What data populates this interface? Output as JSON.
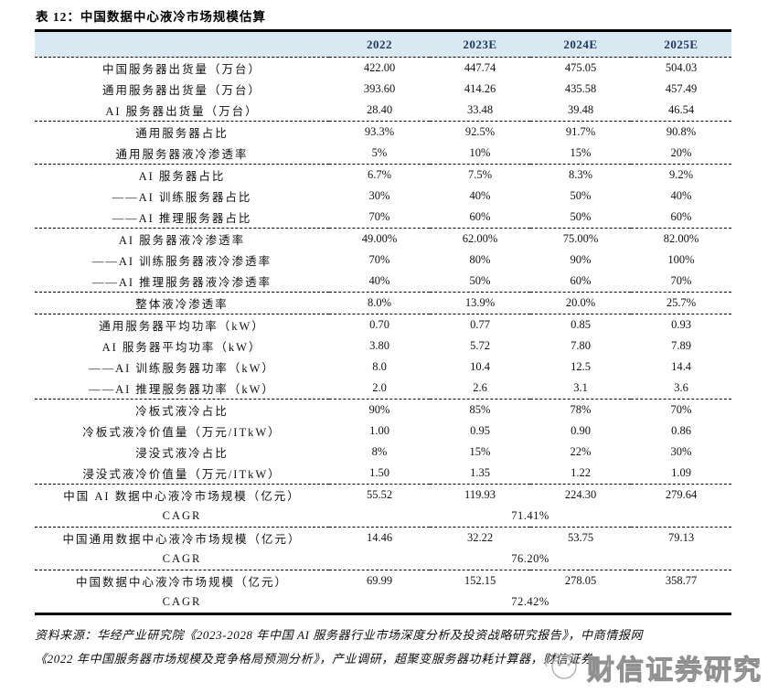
{
  "title": "表 12：中国数据中心液冷市场规模估算",
  "table": {
    "columns": [
      "2022",
      "2023E",
      "2024E",
      "2025E"
    ],
    "groups": [
      {
        "rows": [
          {
            "label": "中国服务器出货量（万台）",
            "values": [
              "422.00",
              "447.74",
              "475.05",
              "504.03"
            ]
          },
          {
            "label": "通用服务器出货量（万台）",
            "values": [
              "393.60",
              "414.26",
              "435.58",
              "457.49"
            ]
          },
          {
            "label": "AI 服务器出货量（万台）",
            "values": [
              "28.40",
              "33.48",
              "39.48",
              "46.54"
            ]
          }
        ]
      },
      {
        "rows": [
          {
            "label": "通用服务器占比",
            "values": [
              "93.3%",
              "92.5%",
              "91.7%",
              "90.8%"
            ]
          },
          {
            "label": "通用服务器液冷渗透率",
            "values": [
              "5%",
              "10%",
              "15%",
              "20%"
            ]
          }
        ]
      },
      {
        "rows": [
          {
            "label": "AI 服务器占比",
            "values": [
              "6.7%",
              "7.5%",
              "8.3%",
              "9.2%"
            ]
          },
          {
            "label": "——AI 训练服务器占比",
            "values": [
              "30%",
              "40%",
              "50%",
              "40%"
            ]
          },
          {
            "label": "——AI 推理服务器占比",
            "values": [
              "70%",
              "60%",
              "50%",
              "60%"
            ]
          }
        ]
      },
      {
        "rows": [
          {
            "label": "AI 服务器液冷渗透率",
            "values": [
              "49.00%",
              "62.00%",
              "75.00%",
              "82.00%"
            ]
          },
          {
            "label": "——AI 训练服务器液冷渗透率",
            "values": [
              "70%",
              "80%",
              "90%",
              "100%"
            ]
          },
          {
            "label": "——AI 推理服务器液冷渗透率",
            "values": [
              "40%",
              "50%",
              "60%",
              "70%"
            ]
          }
        ]
      },
      {
        "rows": [
          {
            "label": "整体液冷渗透率",
            "values": [
              "8.0%",
              "13.9%",
              "20.0%",
              "25.7%"
            ]
          }
        ]
      },
      {
        "rows": [
          {
            "label": "通用服务器平均功率（kW）",
            "values": [
              "0.70",
              "0.77",
              "0.85",
              "0.93"
            ]
          },
          {
            "label": "AI 服务器平均功率（kW）",
            "values": [
              "3.80",
              "5.72",
              "7.80",
              "7.89"
            ]
          },
          {
            "label": "——AI 训练服务器功率（kW）",
            "values": [
              "8.0",
              "10.4",
              "12.5",
              "14.4"
            ]
          },
          {
            "label": "——AI 推理服务器功率（kW）",
            "values": [
              "2.0",
              "2.6",
              "3.1",
              "3.6"
            ]
          }
        ]
      },
      {
        "rows": [
          {
            "label": "冷板式液冷占比",
            "values": [
              "90%",
              "85%",
              "78%",
              "70%"
            ]
          },
          {
            "label": "冷板式液冷价值量（万元/ITkW）",
            "values": [
              "1.00",
              "0.95",
              "0.90",
              "0.86"
            ]
          },
          {
            "label": "浸没式液冷占比",
            "values": [
              "8%",
              "15%",
              "22%",
              "30%"
            ]
          },
          {
            "label": "浸没式液冷价值量（万元/ITkW）",
            "values": [
              "1.50",
              "1.35",
              "1.22",
              "1.09"
            ]
          }
        ]
      },
      {
        "rows": [
          {
            "label": "中国 AI 数据中心液冷市场规模（亿元）",
            "values": [
              "55.52",
              "119.93",
              "224.30",
              "279.64"
            ]
          },
          {
            "label": "CAGR",
            "span_value": "71.41%"
          }
        ]
      },
      {
        "rows": [
          {
            "label": "中国通用数据中心液冷市场规模（亿元）",
            "values": [
              "14.46",
              "32.22",
              "53.75",
              "79.13"
            ]
          },
          {
            "label": "CAGR",
            "span_value": "76.20%"
          }
        ]
      },
      {
        "rows": [
          {
            "label": "中国数据中心液冷市场规模（亿元）",
            "values": [
              "69.99",
              "152.15",
              "278.05",
              "358.77"
            ]
          },
          {
            "label": "CAGR",
            "span_value": "72.42%"
          }
        ]
      }
    ]
  },
  "source_note": {
    "line1": "资料来源：华经产业研究院《2023-2028 年中国 AI 服务器行业市场深度分析及投资战略研究报告》，中商情报网",
    "line2": "《2022 年中国服务器市场规模及竞争格局预测分析》，产业调研，超聚变服务器功耗计算器，财信证券"
  },
  "watermark": {
    "text": "财信证券研究",
    "logo": "panda-face-icon"
  },
  "colors": {
    "header_bg": "#d9e9f2",
    "header_text": "#1f3864",
    "border": "#000000",
    "watermark_gray": "#8f8f8f"
  }
}
